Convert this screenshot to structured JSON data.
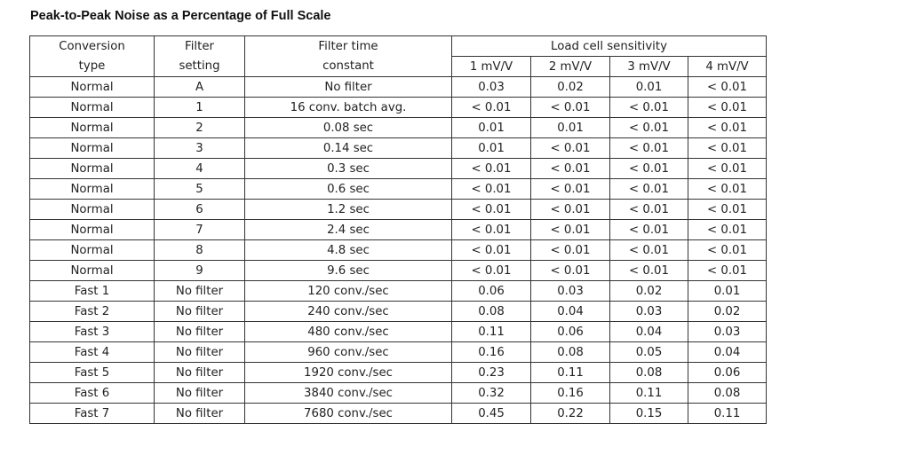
{
  "title": "Peak-to-Peak Noise as a Percentage of Full Scale",
  "headers": {
    "conversion_type": [
      "Conversion",
      "type"
    ],
    "filter_setting": [
      "Filter",
      "setting"
    ],
    "filter_time_constant": [
      "Filter time",
      "constant"
    ],
    "load_cell": "Load cell sensitivity",
    "sensitivities": [
      "1 mV/V",
      "2 mV/V",
      "3 mV/V",
      "4 mV/V"
    ]
  },
  "rows": [
    [
      "Normal",
      "A",
      "No filter",
      "0.03",
      "0.02",
      "0.01",
      "< 0.01"
    ],
    [
      "Normal",
      "1",
      "16 conv. batch avg.",
      "< 0.01",
      "< 0.01",
      "< 0.01",
      "< 0.01"
    ],
    [
      "Normal",
      "2",
      "0.08 sec",
      "0.01",
      "0.01",
      "< 0.01",
      "< 0.01"
    ],
    [
      "Normal",
      "3",
      "0.14 sec",
      "0.01",
      "< 0.01",
      "< 0.01",
      "< 0.01"
    ],
    [
      "Normal",
      "4",
      "0.3 sec",
      "< 0.01",
      "< 0.01",
      "< 0.01",
      "< 0.01"
    ],
    [
      "Normal",
      "5",
      "0.6 sec",
      "< 0.01",
      "< 0.01",
      "< 0.01",
      "< 0.01"
    ],
    [
      "Normal",
      "6",
      "1.2 sec",
      "< 0.01",
      "< 0.01",
      "< 0.01",
      "< 0.01"
    ],
    [
      "Normal",
      "7",
      "2.4 sec",
      "< 0.01",
      "< 0.01",
      "< 0.01",
      "< 0.01"
    ],
    [
      "Normal",
      "8",
      "4.8 sec",
      "< 0.01",
      "< 0.01",
      "< 0.01",
      "< 0.01"
    ],
    [
      "Normal",
      "9",
      "9.6 sec",
      "< 0.01",
      "< 0.01",
      "< 0.01",
      "< 0.01"
    ],
    [
      "Fast 1",
      "No filter",
      "120 conv./sec",
      "0.06",
      "0.03",
      "0.02",
      "0.01"
    ],
    [
      "Fast 2",
      "No filter",
      "240 conv./sec",
      "0.08",
      "0.04",
      "0.03",
      "0.02"
    ],
    [
      "Fast 3",
      "No filter",
      "480 conv./sec",
      "0.11",
      "0.06",
      "0.04",
      "0.03"
    ],
    [
      "Fast 4",
      "No filter",
      "960 conv./sec",
      "0.16",
      "0.08",
      "0.05",
      "0.04"
    ],
    [
      "Fast 5",
      "No filter",
      "1920 conv./sec",
      "0.23",
      "0.11",
      "0.08",
      "0.06"
    ],
    [
      "Fast 6",
      "No filter",
      "3840 conv./sec",
      "0.32",
      "0.16",
      "0.11",
      "0.08"
    ],
    [
      "Fast 7",
      "No filter",
      "7680 conv./sec",
      "0.45",
      "0.22",
      "0.15",
      "0.11"
    ]
  ]
}
